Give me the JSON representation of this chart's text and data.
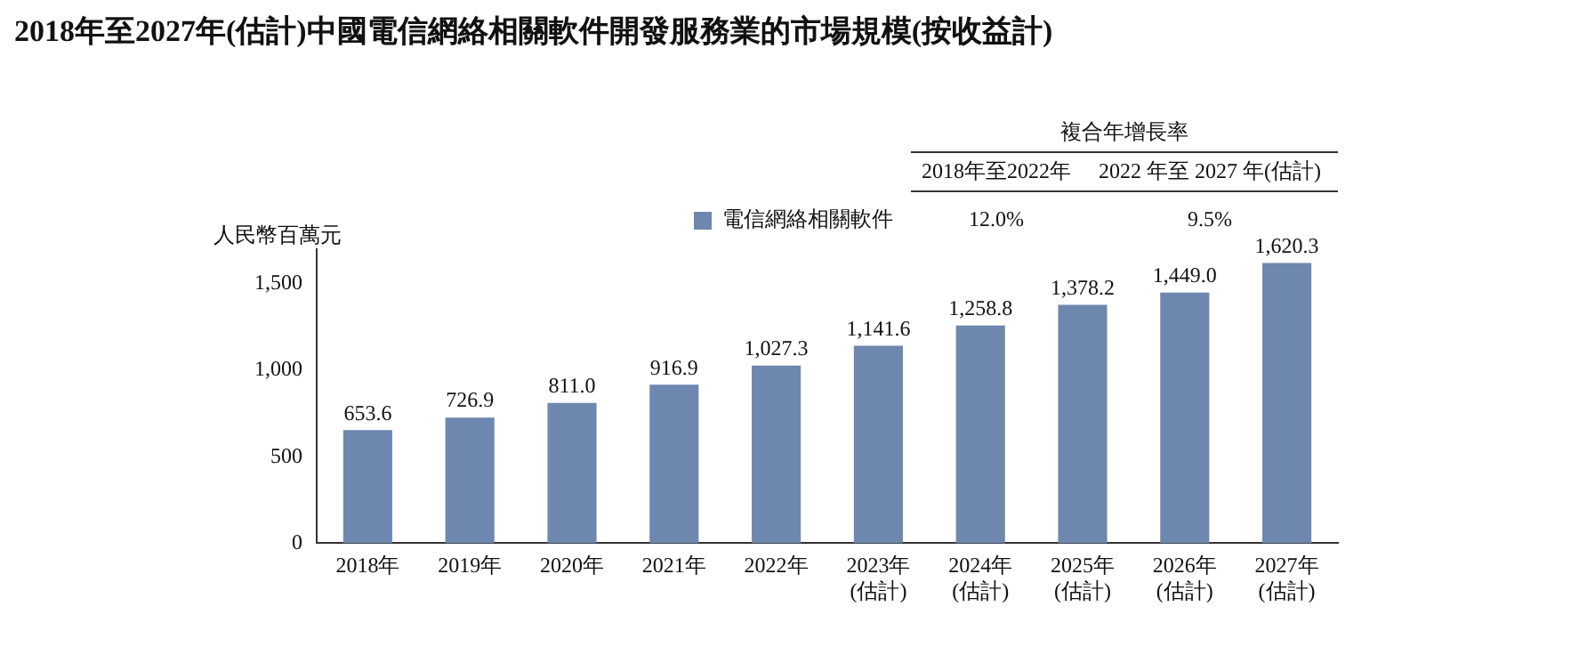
{
  "chart_data": {
    "type": "bar",
    "title": "2018年至2027年(估計)中國電信網絡相關軟件開發服務業的市場規模(按收益計)",
    "ylabel": "人民幣百萬元",
    "categories": [
      "2018年",
      "2019年",
      "2020年",
      "2021年",
      "2022年",
      "2023年\n(估計)",
      "2024年\n(估計)",
      "2025年\n(估計)",
      "2026年\n(估計)",
      "2027年\n(估計)"
    ],
    "series": [
      {
        "name": "電信網絡相關軟件",
        "color": "#6d87ae",
        "values": [
          653.6,
          726.9,
          811.0,
          916.9,
          1027.3,
          1141.6,
          1258.8,
          1378.2,
          1449.0,
          1620.3
        ],
        "value_labels": [
          "653.6",
          "726.9",
          "811.0",
          "916.9",
          "1,027.3",
          "1,141.6",
          "1,258.8",
          "1,378.2",
          "1,449.0",
          "1,620.3"
        ]
      }
    ],
    "ylim": [
      0,
      1700
    ],
    "yticks": [
      0,
      {
        "value": 500,
        "label": "500"
      },
      {
        "value": 1000,
        "label": "1,000"
      },
      {
        "value": 1500,
        "label": "1,500"
      }
    ],
    "grid": false,
    "legend": "top",
    "annotations": [
      "複合年增長率",
      "2018年至2022年",
      "2022 年至 2027 年(估計)",
      "12.0%",
      "9.5%"
    ]
  }
}
